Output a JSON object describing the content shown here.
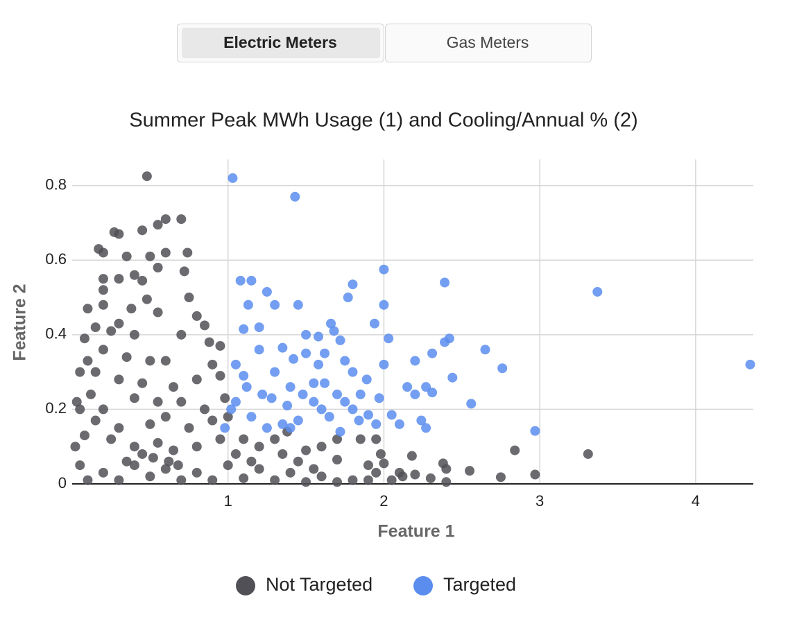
{
  "tabs": {
    "items": [
      "Electric Meters",
      "Gas Meters"
    ],
    "active": 0
  },
  "chart_data": {
    "type": "scatter",
    "title": "Summer Peak MWh Usage (1) and Cooling/Annual % (2)",
    "x_label": "Feature 1",
    "y_label": "Feature 2",
    "xlim": [
      0,
      4.37
    ],
    "ylim": [
      0,
      0.87
    ],
    "xticks": [
      1,
      2,
      3,
      4
    ],
    "yticks": [
      0,
      0.2,
      0.4,
      0.6,
      0.8
    ],
    "grid": true,
    "legend": "bottom",
    "series": [
      {
        "name": "Not Targeted",
        "color": "#505056",
        "x": [
          0.48,
          0.7,
          0.6,
          0.55,
          0.45,
          0.27,
          0.3,
          0.17,
          0.2,
          0.35,
          0.5,
          0.6,
          0.74,
          0.72,
          0.3,
          0.2,
          0.4,
          0.45,
          0.55,
          0.2,
          0.1,
          0.2,
          0.38,
          0.48,
          0.75,
          0.55,
          0.8,
          0.85,
          0.3,
          0.15,
          0.25,
          0.4,
          0.7,
          0.88,
          0.95,
          0.08,
          0.2,
          0.35,
          0.5,
          0.6,
          0.9,
          0.1,
          0.15,
          0.3,
          0.45,
          0.65,
          0.8,
          0.95,
          0.05,
          0.12,
          0.2,
          0.4,
          0.55,
          0.7,
          0.85,
          0.98,
          0.05,
          0.15,
          0.3,
          0.5,
          0.6,
          0.75,
          0.9,
          1.0,
          0.08,
          0.25,
          0.4,
          0.55,
          0.65,
          0.8,
          0.95,
          1.1,
          1.2,
          1.35,
          1.5,
          1.6,
          1.7,
          1.85,
          1.95,
          1.7,
          1.98,
          2.0,
          2.18,
          2.38,
          2.4,
          2.55,
          2.75,
          2.84,
          2.97,
          3.31,
          2.1,
          2.2,
          2.3,
          2.4,
          2.12,
          1.95,
          1.8,
          1.6,
          1.4,
          1.2,
          1.0,
          0.8,
          0.6,
          0.4,
          0.2,
          0.05,
          0.1,
          0.3,
          0.5,
          0.7,
          0.9,
          1.1,
          1.3,
          1.5,
          1.7,
          1.9,
          2.05,
          0.02,
          0.03,
          0.62,
          0.68,
          0.52,
          0.45,
          0.35,
          1.05,
          1.15,
          1.3,
          1.45,
          1.55,
          1.38,
          1.9
        ],
        "values": [
          0.825,
          0.71,
          0.71,
          0.695,
          0.68,
          0.675,
          0.67,
          0.63,
          0.62,
          0.61,
          0.61,
          0.62,
          0.62,
          0.57,
          0.55,
          0.55,
          0.56,
          0.545,
          0.58,
          0.52,
          0.47,
          0.48,
          0.47,
          0.495,
          0.5,
          0.46,
          0.45,
          0.425,
          0.43,
          0.42,
          0.41,
          0.4,
          0.4,
          0.38,
          0.37,
          0.39,
          0.36,
          0.34,
          0.33,
          0.33,
          0.32,
          0.33,
          0.3,
          0.28,
          0.27,
          0.26,
          0.28,
          0.29,
          0.3,
          0.24,
          0.2,
          0.23,
          0.22,
          0.22,
          0.2,
          0.23,
          0.2,
          0.17,
          0.15,
          0.16,
          0.18,
          0.15,
          0.17,
          0.18,
          0.13,
          0.12,
          0.1,
          0.11,
          0.09,
          0.1,
          0.12,
          0.12,
          0.1,
          0.08,
          0.09,
          0.1,
          0.12,
          0.12,
          0.12,
          0.065,
          0.08,
          0.055,
          0.075,
          0.055,
          0.04,
          0.035,
          0.018,
          0.09,
          0.025,
          0.08,
          0.03,
          0.025,
          0.015,
          0.005,
          0.02,
          0.03,
          0.01,
          0.02,
          0.03,
          0.04,
          0.05,
          0.03,
          0.04,
          0.05,
          0.03,
          0.05,
          0.01,
          0.01,
          0.02,
          0.01,
          0.01,
          0.015,
          0.01,
          0.005,
          0.005,
          0.01,
          0.01,
          0.1,
          0.22,
          0.06,
          0.05,
          0.07,
          0.08,
          0.06,
          0.08,
          0.06,
          0.12,
          0.06,
          0.04,
          0.14,
          0.05
        ]
      },
      {
        "name": "Targeted",
        "color": "#5b8def",
        "x": [
          1.03,
          1.43,
          2.0,
          2.39,
          3.37,
          4.35,
          2.97,
          2.56,
          2.65,
          2.76,
          2.44,
          2.42,
          2.39,
          2.31,
          2.31,
          2.27,
          2.2,
          2.2,
          2.15,
          2.24,
          2.27,
          2.1,
          2.05,
          2.0,
          2.03,
          1.94,
          2.0,
          1.97,
          1.89,
          1.84,
          1.8,
          1.77,
          1.75,
          1.72,
          1.68,
          1.66,
          1.62,
          1.58,
          1.55,
          1.5,
          1.45,
          1.42,
          1.35,
          1.3,
          1.25,
          1.2,
          1.15,
          1.08,
          1.13,
          1.1,
          1.05,
          1.2,
          1.3,
          1.4,
          1.5,
          1.6,
          1.7,
          1.8,
          1.9,
          1.05,
          1.15,
          1.25,
          1.35,
          1.45,
          1.55,
          1.65,
          1.75,
          0.98,
          1.1,
          1.22,
          1.38,
          1.48,
          1.62,
          1.72,
          1.85,
          1.95,
          1.28,
          1.12,
          1.02,
          1.4,
          1.58,
          1.8
        ],
        "values": [
          0.82,
          0.77,
          0.575,
          0.54,
          0.515,
          0.32,
          0.142,
          0.215,
          0.36,
          0.31,
          0.285,
          0.39,
          0.38,
          0.35,
          0.245,
          0.26,
          0.24,
          0.33,
          0.26,
          0.17,
          0.15,
          0.16,
          0.185,
          0.48,
          0.39,
          0.43,
          0.32,
          0.23,
          0.28,
          0.17,
          0.535,
          0.5,
          0.33,
          0.385,
          0.41,
          0.43,
          0.35,
          0.395,
          0.27,
          0.35,
          0.48,
          0.335,
          0.365,
          0.48,
          0.515,
          0.36,
          0.545,
          0.545,
          0.48,
          0.415,
          0.32,
          0.42,
          0.3,
          0.26,
          0.4,
          0.2,
          0.24,
          0.2,
          0.185,
          0.22,
          0.18,
          0.15,
          0.16,
          0.17,
          0.22,
          0.18,
          0.22,
          0.15,
          0.29,
          0.24,
          0.21,
          0.24,
          0.27,
          0.14,
          0.24,
          0.16,
          0.23,
          0.26,
          0.2,
          0.15,
          0.32,
          0.3
        ]
      }
    ]
  }
}
